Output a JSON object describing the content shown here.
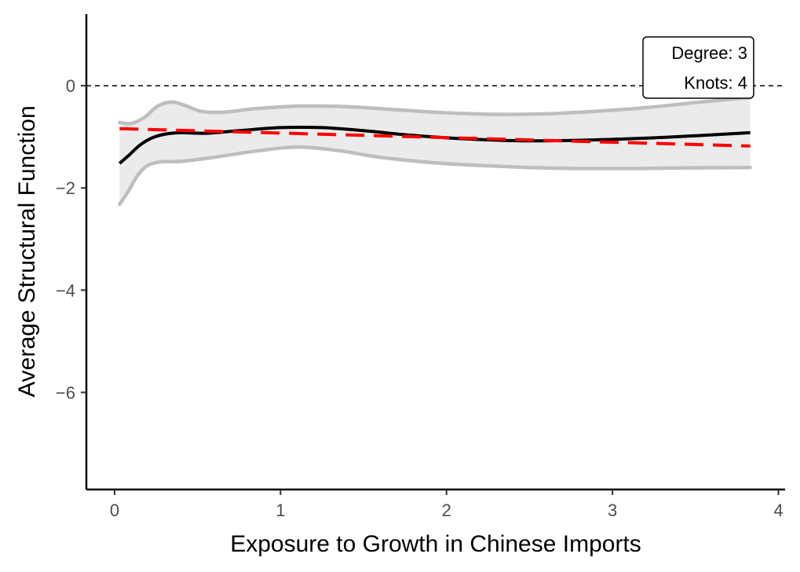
{
  "chart_data": {
    "type": "line",
    "title": "",
    "xlabel": "Exposure to Growth in Chinese Imports",
    "ylabel": "Average Structural Function",
    "xlim": [
      -0.17,
      4.04
    ],
    "ylim": [
      -7.9,
      1.4
    ],
    "xticks": [
      0,
      1,
      2,
      3,
      4
    ],
    "xtick_labels": [
      "0",
      "1",
      "2",
      "3",
      "4"
    ],
    "yticks": [
      0,
      -2,
      -4,
      -6
    ],
    "ytick_labels": [
      "0",
      "−2",
      "−4",
      "−6"
    ],
    "reference_line": {
      "y": 0,
      "style": "dashed",
      "color": "#000000"
    },
    "annotation": {
      "line1": "Degree: 3",
      "line2": "Knots: 4"
    },
    "colors": {
      "estimate": "#000000",
      "band": "#bebebe",
      "band_fill": "#ebebeb",
      "linear_fit": "#ff0000"
    },
    "series": [
      {
        "name": "Estimate",
        "style": "solid",
        "x": [
          0.03,
          0.08,
          0.15,
          0.22,
          0.3,
          0.4,
          0.55,
          0.75,
          1.0,
          1.25,
          1.5,
          1.75,
          2.0,
          2.25,
          2.5,
          2.75,
          3.0,
          3.25,
          3.5,
          3.83
        ],
        "y": [
          -1.52,
          -1.38,
          -1.17,
          -1.03,
          -0.95,
          -0.92,
          -0.93,
          -0.88,
          -0.82,
          -0.82,
          -0.88,
          -0.96,
          -1.02,
          -1.06,
          -1.08,
          -1.07,
          -1.05,
          -1.02,
          -0.98,
          -0.92
        ]
      },
      {
        "name": "Upper band",
        "style": "solid",
        "x": [
          0.03,
          0.1,
          0.18,
          0.26,
          0.34,
          0.42,
          0.52,
          0.65,
          0.85,
          1.1,
          1.4,
          1.7,
          2.0,
          2.3,
          2.6,
          2.9,
          3.2,
          3.5,
          3.83
        ],
        "y": [
          -0.72,
          -0.74,
          -0.62,
          -0.4,
          -0.32,
          -0.38,
          -0.5,
          -0.52,
          -0.45,
          -0.4,
          -0.41,
          -0.47,
          -0.53,
          -0.56,
          -0.55,
          -0.5,
          -0.43,
          -0.33,
          -0.23
        ]
      },
      {
        "name": "Lower band",
        "style": "solid",
        "x": [
          0.03,
          0.08,
          0.14,
          0.2,
          0.28,
          0.4,
          0.6,
          0.85,
          1.1,
          1.35,
          1.6,
          1.9,
          2.2,
          2.5,
          2.8,
          3.1,
          3.4,
          3.83
        ],
        "y": [
          -2.32,
          -2.08,
          -1.75,
          -1.56,
          -1.49,
          -1.48,
          -1.4,
          -1.28,
          -1.2,
          -1.27,
          -1.4,
          -1.5,
          -1.56,
          -1.6,
          -1.62,
          -1.62,
          -1.61,
          -1.6
        ]
      },
      {
        "name": "Linear fit",
        "style": "dashed",
        "x": [
          0.03,
          3.83
        ],
        "y": [
          -0.84,
          -1.18
        ]
      }
    ]
  }
}
